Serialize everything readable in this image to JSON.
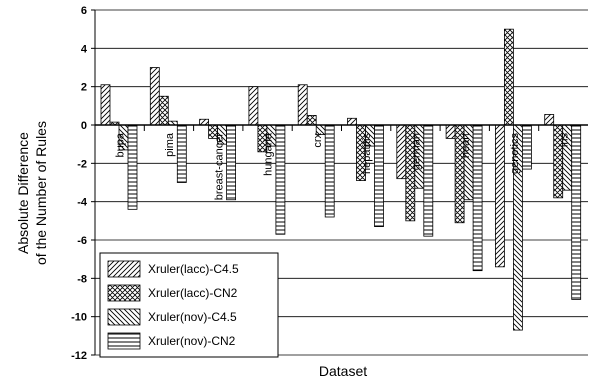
{
  "chart_data": {
    "type": "bar",
    "title": "",
    "xlabel": "Dataset",
    "ylabel_lines": [
      "Absolute Difference",
      "of the Number of Rules"
    ],
    "ylim": [
      -12,
      6
    ],
    "yticks": [
      6,
      4,
      2,
      0,
      -2,
      -4,
      -6,
      -8,
      -10,
      -12
    ],
    "grid": true,
    "legend_position": "bottom-left",
    "categories": [
      "bupa",
      "pima",
      "breast-cancer",
      "hungaria",
      "crx",
      "hepatitis",
      "german",
      "heart",
      "genetics",
      "iris"
    ],
    "series": [
      {
        "name": "Xruler(lacc)-C4.5",
        "pattern": "diag-right",
        "values": [
          2.1,
          3.0,
          0.3,
          2.0,
          2.1,
          0.35,
          -2.8,
          -0.7,
          -7.4,
          0.55
        ]
      },
      {
        "name": "Xruler(lacc)-CN2",
        "pattern": "cross",
        "values": [
          0.15,
          1.5,
          -0.7,
          -1.4,
          0.5,
          -2.9,
          -5.0,
          -5.1,
          5.0,
          -3.8
        ]
      },
      {
        "name": "Xruler(nov)-C4.5",
        "pattern": "diag-left",
        "values": [
          -1.3,
          0.2,
          -1.0,
          -1.1,
          -0.5,
          -1.1,
          -3.3,
          -3.9,
          -10.7,
          -3.4
        ]
      },
      {
        "name": "Xruler(nov)-CN2",
        "pattern": "horizontal",
        "values": [
          -4.4,
          -3.0,
          -3.9,
          -5.7,
          -4.8,
          -5.3,
          -5.8,
          -7.6,
          -2.3,
          -9.1
        ]
      }
    ]
  }
}
